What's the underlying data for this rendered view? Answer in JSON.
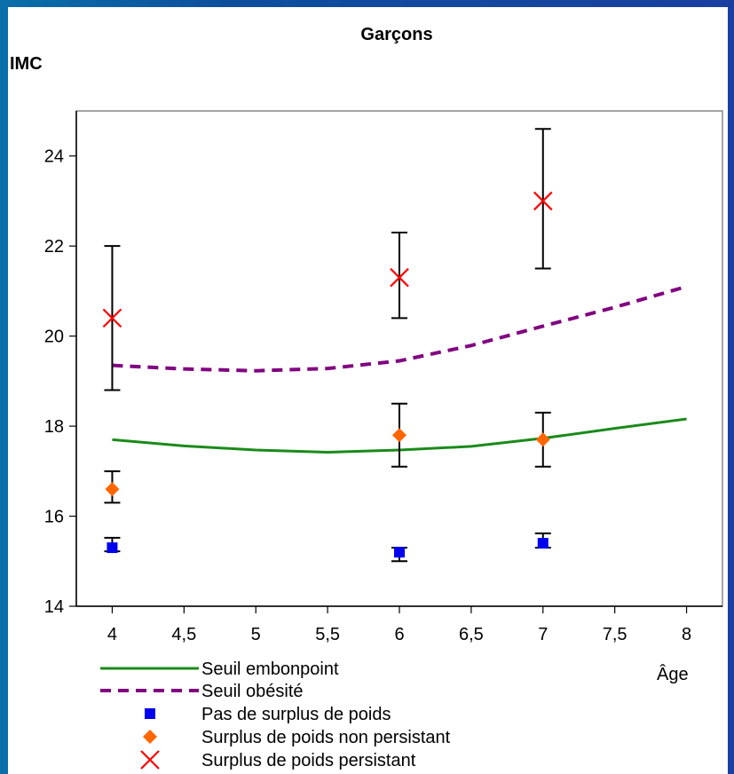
{
  "chart_data": {
    "type": "scatter",
    "title": "Garçons",
    "ylabel": "IMC",
    "xlabel": "Âge",
    "xlim": [
      3.75,
      8.25
    ],
    "ylim": [
      14,
      25
    ],
    "x_ticks": [
      4,
      4.5,
      5,
      5.5,
      6,
      6.5,
      7,
      7.5,
      8
    ],
    "x_tick_labels": [
      "4",
      "4,5",
      "5",
      "5,5",
      "6",
      "6,5",
      "7",
      "7,5",
      "8"
    ],
    "y_ticks": [
      14,
      16,
      18,
      20,
      22,
      24
    ],
    "y_tick_labels": [
      "14",
      "16",
      "18",
      "20",
      "22",
      "24"
    ],
    "grid": false,
    "series": [
      {
        "name": "Seuil embonpoint",
        "kind": "line",
        "style": "solid",
        "color": "#1a8a1a",
        "x": [
          4,
          4.5,
          5,
          5.5,
          6,
          6.5,
          7,
          7.5,
          8
        ],
        "y": [
          17.7,
          17.56,
          17.47,
          17.42,
          17.47,
          17.55,
          17.73,
          17.95,
          18.16
        ]
      },
      {
        "name": "Seuil obésité",
        "kind": "line",
        "style": "dashed",
        "color": "#800080",
        "x": [
          4,
          4.5,
          5,
          5.5,
          6,
          6.5,
          7,
          7.5,
          8
        ],
        "y": [
          19.35,
          19.27,
          19.23,
          19.28,
          19.45,
          19.79,
          20.22,
          20.64,
          21.1
        ]
      },
      {
        "name": "Pas de surplus de poids",
        "kind": "points",
        "marker": "square",
        "color": "#0000ee",
        "x": [
          4,
          6,
          7
        ],
        "y": [
          15.3,
          15.2,
          15.4
        ],
        "err_low": [
          15.22,
          15.0,
          15.3
        ],
        "err_high": [
          15.52,
          15.3,
          15.62
        ]
      },
      {
        "name": "Surplus de poids non persistant",
        "kind": "points",
        "marker": "diamond",
        "color": "#ff6600",
        "x": [
          4,
          6,
          7
        ],
        "y": [
          16.6,
          17.8,
          17.7
        ],
        "err_low": [
          16.3,
          17.1,
          17.1
        ],
        "err_high": [
          17.0,
          18.5,
          18.3
        ]
      },
      {
        "name": "Surplus de poids persistant",
        "kind": "points",
        "marker": "asterisk",
        "color": "#ff0000",
        "x": [
          4,
          6,
          7
        ],
        "y": [
          20.4,
          21.3,
          23.0
        ],
        "err_low": [
          18.8,
          20.4,
          21.5
        ],
        "err_high": [
          22.0,
          22.3,
          24.6
        ]
      }
    ]
  }
}
